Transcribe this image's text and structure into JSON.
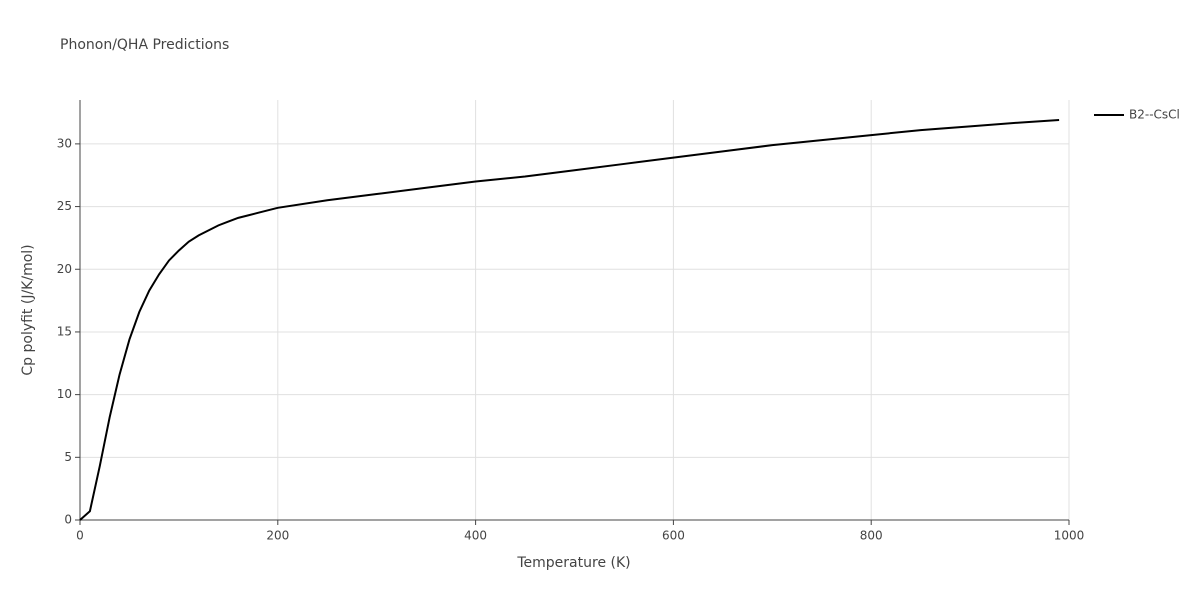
{
  "chart_data": {
    "type": "line",
    "title": "Phonon/QHA Predictions",
    "x_label": "Temperature (K)",
    "y_label": "Cp polyfit (J/K/mol)",
    "x": [
      0,
      10,
      20,
      30,
      40,
      50,
      60,
      70,
      80,
      90,
      100,
      110,
      120,
      130,
      140,
      150,
      160,
      170,
      180,
      200,
      250,
      300,
      350,
      400,
      450,
      500,
      550,
      600,
      650,
      700,
      750,
      800,
      850,
      900,
      950,
      990
    ],
    "series": [
      {
        "name": "B2--CsCl",
        "color": "#000000",
        "values": [
          0,
          0.7,
          4.3,
          8.2,
          11.6,
          14.4,
          16.6,
          18.3,
          19.6,
          20.7,
          21.5,
          22.2,
          22.7,
          23.1,
          23.5,
          23.8,
          24.1,
          24.3,
          24.5,
          24.9,
          25.5,
          26.0,
          26.5,
          27.0,
          27.4,
          27.9,
          28.4,
          28.9,
          29.4,
          29.9,
          30.3,
          30.7,
          31.1,
          31.4,
          31.7,
          31.9
        ]
      }
    ],
    "xlim": [
      0,
      1000
    ],
    "xticks": [
      0,
      200,
      400,
      600,
      800,
      1000
    ],
    "ylim": [
      0,
      33.5
    ],
    "yticks": [
      0,
      5,
      10,
      15,
      20,
      25,
      30
    ],
    "grid": true,
    "legend": "right"
  }
}
